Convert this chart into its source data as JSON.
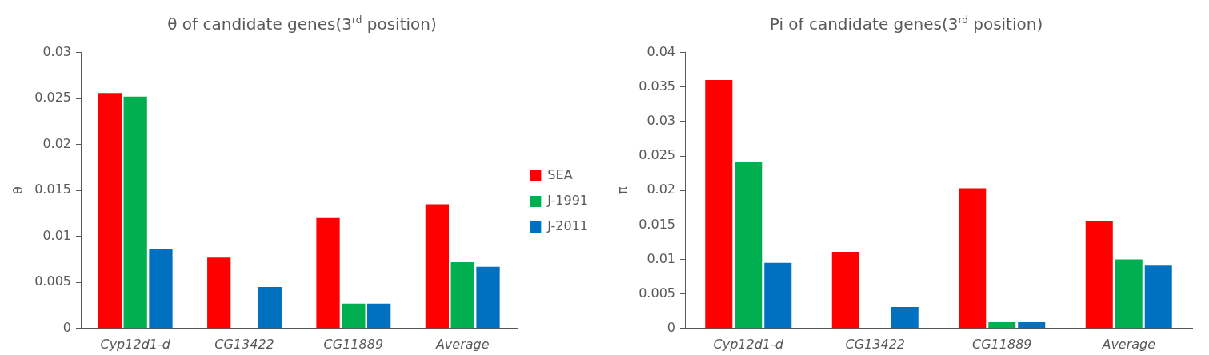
{
  "chart_data": [
    {
      "type": "bar",
      "title": "θ of candidate genes(3$^{rd}$ position)",
      "ylabel": "θ",
      "categories": [
        "Cyp12d1-d",
        "CG13422",
        "CG11889",
        "Average"
      ],
      "series": [
        {
          "name": "SEA",
          "color": "#ff0000",
          "values": [
            0.0256,
            0.0077,
            0.012,
            0.0135
          ]
        },
        {
          "name": "J-1991",
          "color": "#00b050",
          "values": [
            0.0252,
            0,
            0.0027,
            0.0072
          ]
        },
        {
          "name": "J-2011",
          "color": "#0070c0",
          "values": [
            0.0086,
            0.0045,
            0.0027,
            0.0067
          ]
        }
      ],
      "ylim": [
        0,
        0.03
      ],
      "yticks": [
        0,
        0.005,
        0.01,
        0.015,
        0.02,
        0.025,
        0.03
      ],
      "grid": false,
      "legend": "right"
    },
    {
      "type": "bar",
      "title": "Pi of candidate genes(3$^{rd}$ position)",
      "ylabel": "π",
      "categories": [
        "Cyp12d1-d",
        "CG13422",
        "CG11889",
        "Average"
      ],
      "series": [
        {
          "color": "#ff0000",
          "values": [
            0.036,
            0.0111,
            0.0203,
            0.0155
          ]
        },
        {
          "color": "#00b050",
          "values": [
            0.0241,
            0,
            0.0009,
            0.01
          ]
        },
        {
          "color": "#0070c0",
          "values": [
            0.0095,
            0.0031,
            0.0009,
            0.0091
          ]
        }
      ],
      "ylim": [
        0,
        0.04
      ],
      "yticks": [
        0,
        0.005,
        0.01,
        0.015,
        0.02,
        0.025,
        0.03,
        0.035,
        0.04
      ],
      "grid": false,
      "legend": false
    }
  ]
}
